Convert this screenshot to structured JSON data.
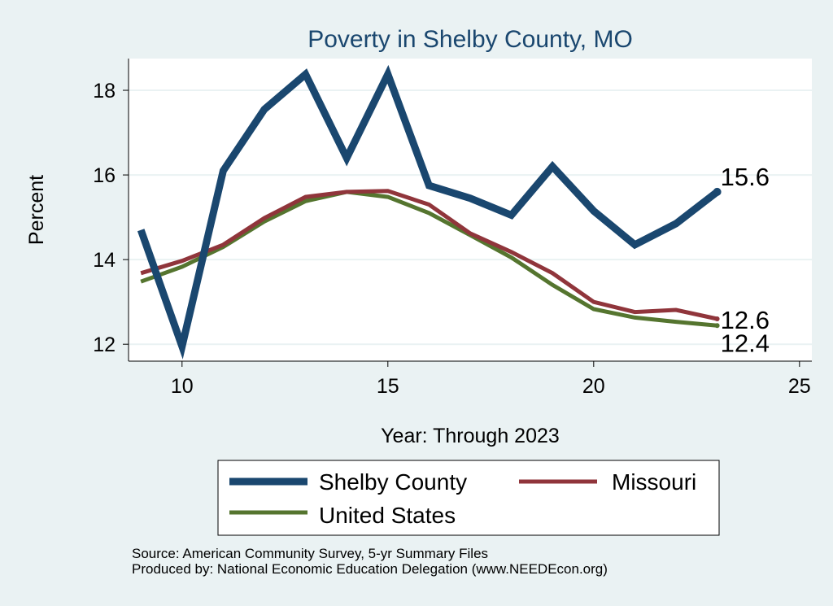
{
  "chart_data": {
    "type": "line",
    "title": "Poverty in Shelby County, MO",
    "xlabel": "Year: Through 2023",
    "ylabel": "Percent",
    "xlim": [
      8.7,
      25.3
    ],
    "ylim": [
      11.6,
      18.75
    ],
    "xticks": [
      10,
      15,
      20,
      25
    ],
    "yticks": [
      12,
      14,
      16,
      18
    ],
    "grid": true,
    "legend_position": "bottom",
    "series": [
      {
        "name": "Shelby County",
        "color": "#1a476f",
        "x": [
          9,
          10,
          11,
          12,
          13,
          14,
          15,
          16,
          17,
          18,
          19,
          20,
          21,
          22,
          23
        ],
        "values": [
          14.7,
          11.95,
          16.1,
          17.55,
          18.38,
          16.4,
          18.38,
          15.75,
          15.45,
          15.05,
          16.2,
          15.15,
          14.35,
          14.85,
          15.6
        ],
        "end_label": "15.6"
      },
      {
        "name": "Missouri",
        "color": "#90353b",
        "x": [
          9,
          10,
          11,
          12,
          13,
          14,
          15,
          16,
          17,
          18,
          19,
          20,
          21,
          22,
          23
        ],
        "values": [
          13.68,
          13.97,
          14.35,
          14.98,
          15.48,
          15.6,
          15.62,
          15.3,
          14.62,
          14.18,
          13.68,
          13.0,
          12.76,
          12.81,
          12.6
        ],
        "end_label": "12.6"
      },
      {
        "name": "United States",
        "color": "#55752f",
        "x": [
          9,
          10,
          11,
          12,
          13,
          14,
          15,
          16,
          17,
          18,
          19,
          20,
          21,
          22,
          23
        ],
        "values": [
          13.48,
          13.83,
          14.3,
          14.9,
          15.38,
          15.6,
          15.48,
          15.1,
          14.58,
          14.05,
          13.4,
          12.83,
          12.63,
          12.53,
          12.44
        ],
        "end_label": "12.4"
      }
    ]
  },
  "footer": {
    "source": "Source: American Community Survey, 5-yr Summary Files",
    "produced_by": "Produced by: National Economic Education Delegation (www.NEEDEcon.org)"
  }
}
